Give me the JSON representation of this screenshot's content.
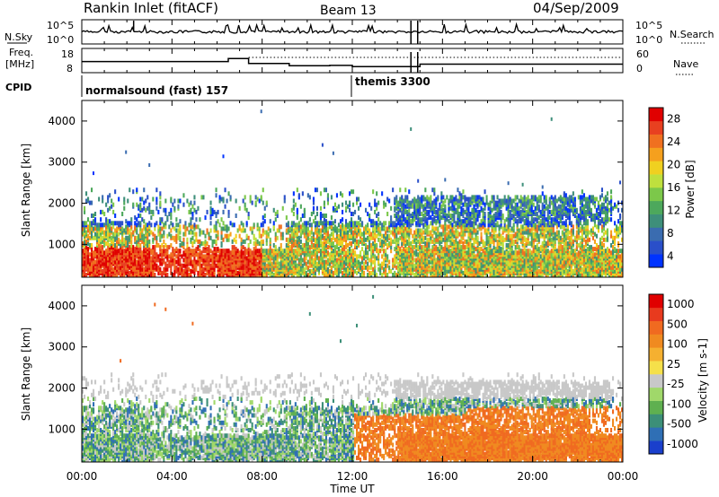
{
  "header": {
    "title": "Rankin Inlet (fitACF)",
    "beam": "Beam 13",
    "date": "04/Sep/2009"
  },
  "panel_labels": {
    "nsky": "N.Sky",
    "nsearch": "N.Search",
    "freq_line1": "Freq.",
    "freq_line2": "[MHz]",
    "nave": "Nave",
    "cpid": "CPID"
  },
  "cpid_labels": [
    "normalsound (fast) 157",
    "themis 3300"
  ],
  "chart_data": [
    {
      "type": "line",
      "name": "noise",
      "ylim_left": [
        "10^0",
        "10^5"
      ],
      "ylim_right": [
        "10^0",
        "10^5"
      ],
      "left_ticks": [
        "10^5",
        "10^0"
      ],
      "right_ticks": [
        "10^5",
        "10^0"
      ]
    },
    {
      "type": "line",
      "name": "frequency-nave",
      "left_ticks": [
        "18",
        "8"
      ],
      "right_ticks": [
        "60",
        "0"
      ],
      "ylim_left": [
        8,
        18
      ],
      "ylim_right": [
        0,
        60
      ],
      "freq_x": [
        0,
        6.5,
        7.4,
        9.2,
        11.0,
        12.0,
        14.5,
        15.0,
        24
      ],
      "freq_y": [
        12.6,
        13.8,
        11.8,
        10.9,
        11.0,
        10.5,
        10.5,
        11.5,
        11.5
      ]
    },
    {
      "type": "heatmap",
      "name": "power",
      "ylabel": "Slant Range [km]",
      "y_ticks": [
        "1000",
        "2000",
        "3000",
        "4000"
      ],
      "ylim": [
        200,
        4500
      ],
      "colorbar_label": "Power [dB]",
      "colorbar_ticks": [
        "28",
        "24",
        "20",
        "16",
        "12",
        "8",
        "4"
      ],
      "colorbar_range": [
        0,
        30
      ],
      "colorbar_colors": [
        "#0033ff",
        "#2a4fc9",
        "#3a6cb0",
        "#3e8f7a",
        "#4da85c",
        "#7cc84a",
        "#bfe03e",
        "#f0d020",
        "#f5a01e",
        "#f07020",
        "#e84020",
        "#e00000"
      ]
    },
    {
      "type": "heatmap",
      "name": "velocity",
      "ylabel": "Slant Range [km]",
      "y_ticks": [
        "1000",
        "2000",
        "3000",
        "4000"
      ],
      "ylim": [
        200,
        4500
      ],
      "colorbar_label": "Velocity [m s-1]",
      "colorbar_ticks": [
        "1000",
        "500",
        "100",
        "25",
        "-25",
        "-100",
        "-500",
        "-1000"
      ],
      "colorbar_colors": [
        "#1a3fcc",
        "#2f6fb5",
        "#3c8f78",
        "#5fb050",
        "#a0d86a",
        "#c8c8c8",
        "#f5e04a",
        "#f5b030",
        "#f08a20",
        "#f06a20",
        "#e83a1e",
        "#e00000"
      ]
    }
  ],
  "x_axis": {
    "ticks": [
      "00:00",
      "04:00",
      "08:00",
      "12:00",
      "16:00",
      "20:00",
      "00:00"
    ],
    "label": "Time UT"
  }
}
